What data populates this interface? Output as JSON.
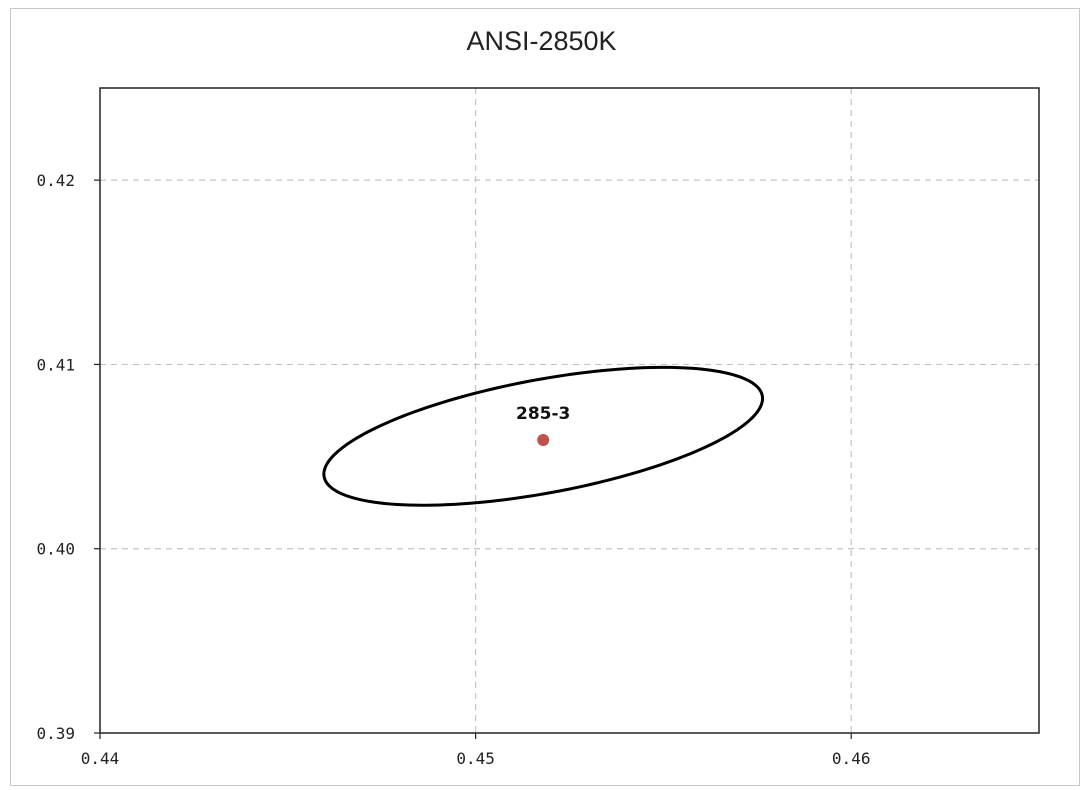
{
  "chart_data": {
    "type": "scatter",
    "title": "ANSI-2850K",
    "xlabel": "",
    "ylabel": "",
    "xlim": [
      0.44,
      0.465
    ],
    "ylim": [
      0.39,
      0.425
    ],
    "x_ticks": [
      "0.44",
      "0.45",
      "0.46"
    ],
    "y_ticks": [
      "0.39",
      "0.40",
      "0.41",
      "0.42"
    ],
    "grid": true,
    "points": [
      {
        "label": "285-3",
        "x": 0.4518,
        "y": 0.4059,
        "color": "#c0504d"
      }
    ],
    "ellipse": {
      "center": [
        0.4518,
        0.4061
      ],
      "semi_major": 0.0063,
      "semi_minor": 0.0029,
      "rotation_deg": 25,
      "color": "#000000"
    }
  }
}
